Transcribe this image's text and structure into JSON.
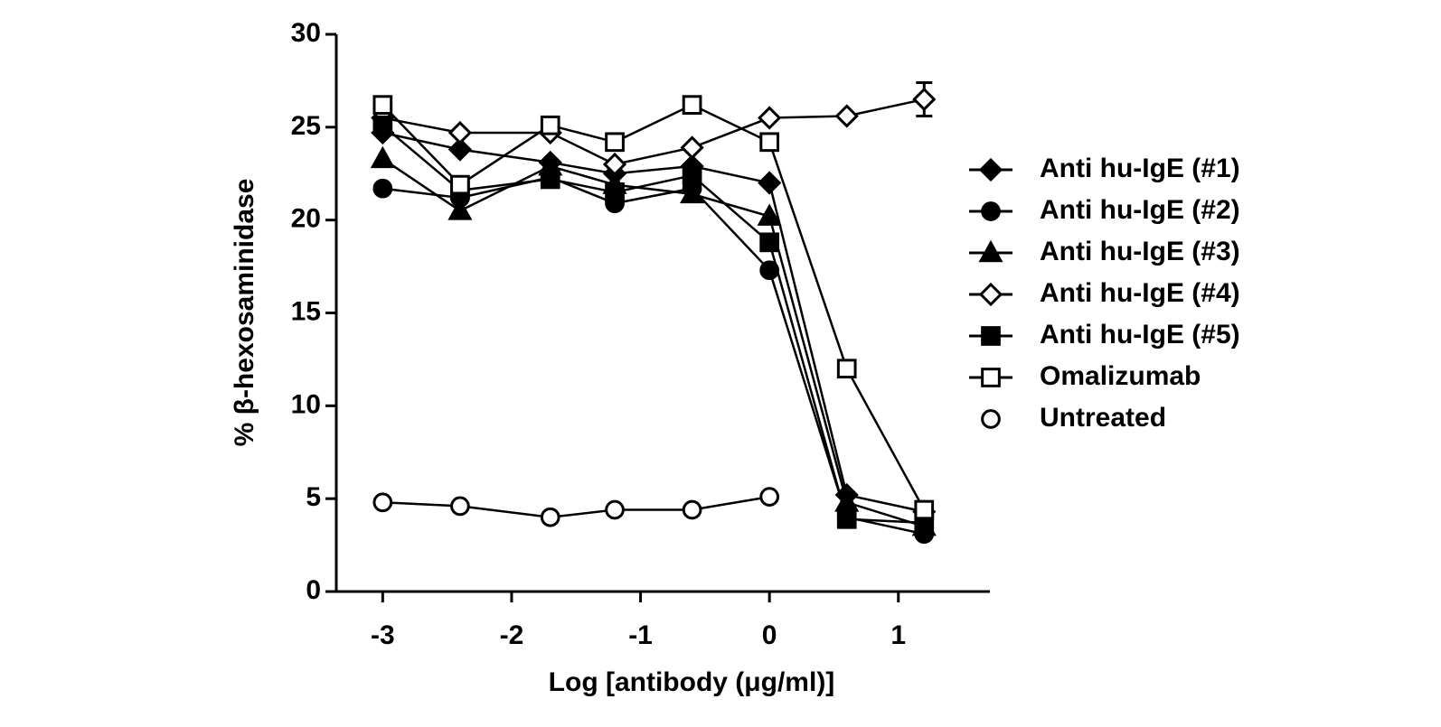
{
  "chart_data": {
    "type": "line",
    "x_label": "Log [antibody (μg/ml)]",
    "y_label": "% β-hexosaminidase",
    "x": [
      -3,
      -2.4,
      -1.7,
      -1.2,
      -0.6,
      0,
      0.6,
      1.2
    ],
    "xlim": [
      -3.36,
      1.71
    ],
    "xticks": [
      -3,
      -2,
      -1,
      0,
      1
    ],
    "ylim": [
      0,
      30
    ],
    "yticks": [
      0,
      5,
      10,
      15,
      20,
      25,
      30
    ],
    "legend": "right",
    "series": [
      {
        "name": "Anti hu-IgE (#1)",
        "color": "#000",
        "marker": "diamond",
        "filled": true,
        "values": [
          24.7,
          23.8,
          23.1,
          22.5,
          22.9,
          22.0,
          5.2,
          4.3
        ]
      },
      {
        "name": "Anti hu-IgE (#2)",
        "color": "#000",
        "marker": "circle",
        "filled": true,
        "values": [
          21.7,
          21.2,
          22.3,
          20.9,
          21.7,
          17.3,
          4.0,
          3.1
        ]
      },
      {
        "name": "Anti hu-IgE (#3)",
        "color": "#000",
        "marker": "triangle",
        "filled": true,
        "values": [
          23.3,
          20.5,
          22.9,
          21.9,
          21.4,
          20.2,
          4.8,
          3.5
        ]
      },
      {
        "name": "Anti hu-IgE (#4)",
        "color": "#000",
        "marker": "diamond",
        "filled": false,
        "values": [
          25.5,
          24.7,
          24.7,
          23.0,
          23.9,
          25.5,
          25.6,
          26.5
        ],
        "errors": [
          null,
          null,
          null,
          null,
          null,
          null,
          null,
          0.9
        ]
      },
      {
        "name": "Anti hu-IgE (#5)",
        "color": "#000",
        "marker": "square",
        "filled": true,
        "values": [
          25.1,
          21.6,
          22.2,
          21.5,
          22.4,
          18.8,
          3.9,
          3.7
        ]
      },
      {
        "name": "Omalizumab",
        "color": "#000",
        "marker": "square",
        "filled": false,
        "values": [
          26.2,
          21.9,
          25.1,
          24.2,
          26.2,
          24.2,
          12.0,
          4.4
        ]
      },
      {
        "name": "Untreated",
        "color": "#000",
        "marker": "circle",
        "filled": false,
        "values": [
          4.8,
          4.6,
          4.0,
          4.4,
          4.4,
          5.1,
          null,
          null
        ]
      }
    ]
  }
}
